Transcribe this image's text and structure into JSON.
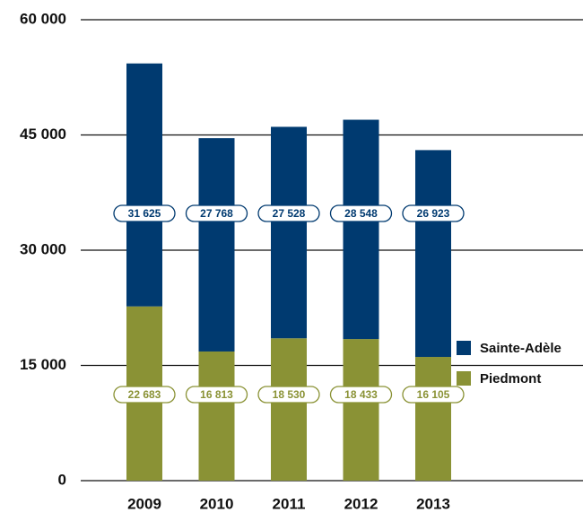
{
  "chart_data": {
    "type": "stacked-bar",
    "categories": [
      "2009",
      "2010",
      "2011",
      "2012",
      "2013"
    ],
    "series": [
      {
        "name": "Piedmont",
        "color": "#8a9235",
        "values": [
          22683,
          16813,
          18530,
          18433,
          16105
        ],
        "value_labels": [
          "22 683",
          "16 813",
          "18 530",
          "18 433",
          "16 105"
        ]
      },
      {
        "name": "Sainte-Adèle",
        "color": "#003a70",
        "values": [
          31625,
          27768,
          27528,
          28548,
          26923
        ],
        "value_labels": [
          "31 625",
          "27 768",
          "27 528",
          "28 548",
          "26 923"
        ]
      }
    ],
    "ylim": [
      0,
      60000
    ],
    "yticks": [
      0,
      {
        "value": 15000,
        "label": "15 000"
      },
      {
        "value": 30000,
        "label": "30 000"
      },
      {
        "value": 45000,
        "label": "45 000"
      },
      {
        "value": 60000,
        "label": "60 000"
      }
    ],
    "grid": true,
    "legend": "right"
  }
}
